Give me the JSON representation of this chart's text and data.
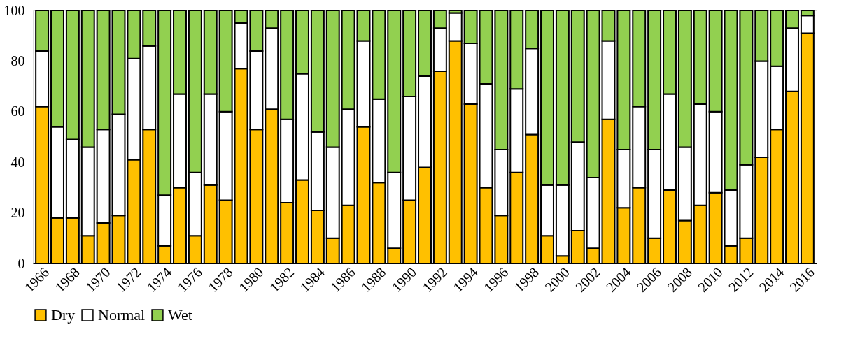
{
  "chart_data": {
    "type": "bar",
    "stacked": true,
    "categories": [
      "1966",
      null,
      "1968",
      null,
      "1970",
      null,
      "1972",
      null,
      "1974",
      null,
      "1976",
      null,
      "1978",
      null,
      "1980",
      null,
      "1982",
      null,
      "1984",
      null,
      "1986",
      null,
      "1988",
      null,
      "1990",
      null,
      "1992",
      null,
      "1994",
      null,
      "1996",
      null,
      "1998",
      null,
      "2000",
      null,
      "2002",
      null,
      "2004",
      null,
      "2006",
      null,
      "2008",
      null,
      "2010",
      null,
      "2012",
      null,
      "2014",
      null,
      "2016"
    ],
    "series": [
      {
        "name": "Dry",
        "color": "#ffc000",
        "values": [
          62,
          18,
          18,
          11,
          16,
          19,
          41,
          53,
          7,
          30,
          11,
          31,
          25,
          77,
          53,
          61,
          24,
          33,
          21,
          10,
          23,
          54,
          32,
          6,
          25,
          38,
          76,
          88,
          63,
          30,
          19,
          36,
          51,
          11,
          3,
          13,
          6,
          57,
          22,
          30,
          10,
          29,
          17,
          23,
          28,
          7,
          10,
          42,
          53,
          68,
          91
        ]
      },
      {
        "name": "Normal",
        "color": "#ffffff",
        "values": [
          22,
          36,
          31,
          35,
          37,
          40,
          40,
          33,
          20,
          37,
          25,
          36,
          35,
          18,
          31,
          32,
          33,
          42,
          31,
          36,
          38,
          34,
          33,
          30,
          41,
          36,
          17,
          11,
          24,
          41,
          26,
          33,
          34,
          20,
          28,
          35,
          28,
          31,
          23,
          32,
          35,
          38,
          29,
          40,
          32,
          22,
          29,
          38,
          25,
          25,
          7
        ]
      },
      {
        "name": "Wet",
        "color": "#92d050",
        "values": [
          16,
          46,
          51,
          54,
          47,
          41,
          19,
          14,
          73,
          33,
          64,
          33,
          40,
          5,
          16,
          7,
          43,
          25,
          48,
          54,
          39,
          12,
          35,
          64,
          34,
          26,
          7,
          1,
          13,
          29,
          55,
          31,
          15,
          69,
          69,
          52,
          66,
          12,
          55,
          38,
          55,
          33,
          54,
          37,
          40,
          71,
          61,
          20,
          22,
          7,
          2
        ]
      }
    ],
    "ylim": [
      0,
      100
    ],
    "yticks": [
      0,
      20,
      40,
      60,
      80,
      100
    ],
    "grid": false,
    "legend": "bottom"
  }
}
